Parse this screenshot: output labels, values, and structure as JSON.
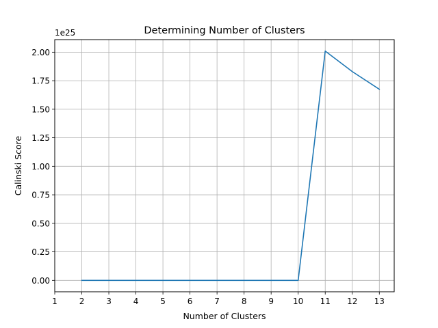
{
  "chart_data": {
    "type": "line",
    "title": "Determining Number of Clusters",
    "xlabel": "Number of Clusters",
    "ylabel": "Calinski Score",
    "offset_text": "1e25",
    "xlim": [
      1,
      13.55
    ],
    "ylim": [
      -0.1,
      2.11
    ],
    "x_ticks": [
      1,
      2,
      3,
      4,
      5,
      6,
      7,
      8,
      9,
      10,
      11,
      12,
      13
    ],
    "x_tick_labels": [
      "1",
      "2",
      "3",
      "4",
      "5",
      "6",
      "7",
      "8",
      "9",
      "10",
      "11",
      "12",
      "13"
    ],
    "y_ticks": [
      0,
      0.25,
      0.5,
      0.75,
      1.0,
      1.25,
      1.5,
      1.75,
      2.0
    ],
    "y_tick_labels": [
      "0.00",
      "0.25",
      "0.50",
      "0.75",
      "1.00",
      "1.25",
      "1.50",
      "1.75",
      "2.00"
    ],
    "grid": true,
    "series": [
      {
        "color": "#1f77b4",
        "x": [
          2,
          3,
          4,
          5,
          6,
          7,
          8,
          9,
          10,
          11,
          12,
          13
        ],
        "values": [
          0,
          0,
          0,
          0,
          0,
          0,
          0,
          0,
          0,
          2.01,
          1.83,
          1.675
        ]
      }
    ]
  }
}
